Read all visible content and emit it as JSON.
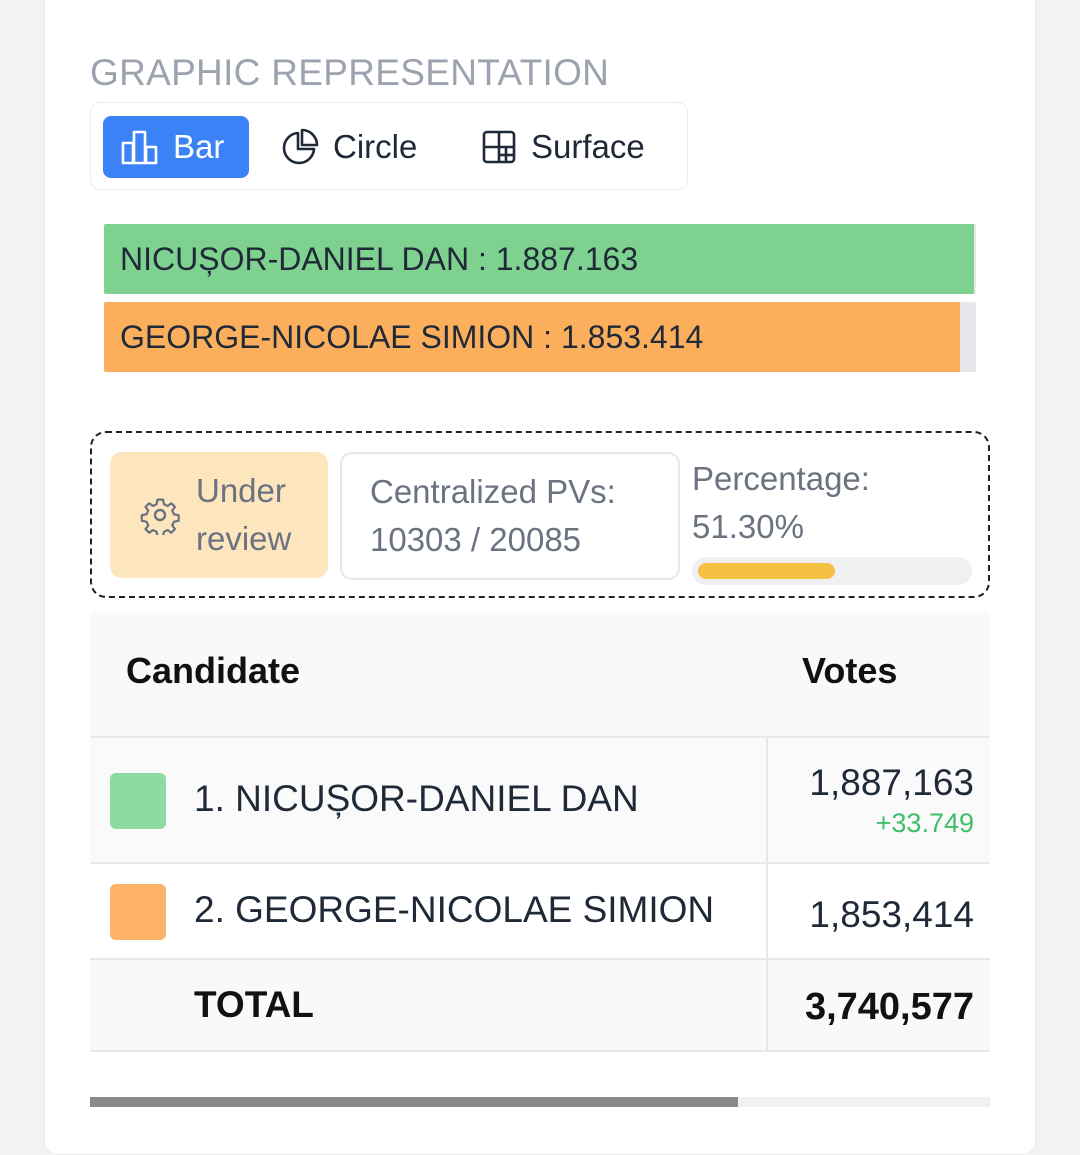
{
  "section": {
    "title": "GRAPHIC REPRESENTATION"
  },
  "tabs": [
    {
      "label": "Bar",
      "icon": "bar-chart-icon",
      "active": true
    },
    {
      "label": "Circle",
      "icon": "pie-chart-icon",
      "active": false
    },
    {
      "label": "Surface",
      "icon": "treemap-icon",
      "active": false
    }
  ],
  "bars": [
    {
      "label": "NICUȘOR-DANIEL DAN : 1.887.163",
      "value": 1887163,
      "fraction": 0.998,
      "color": "#7fd18f"
    },
    {
      "label": "GEORGE-NICOLAE SIMION : 1.853.414",
      "value": 1853414,
      "fraction": 0.982,
      "color": "#fbae5c"
    }
  ],
  "status": {
    "review_label": "Under review",
    "pv_label": "Centralized PVs:",
    "pv_value": "10303 / 20085",
    "percentage_label": "Percentage:",
    "percentage_value": "51.30%",
    "percentage_fraction": 0.513
  },
  "table": {
    "headers": {
      "candidate": "Candidate",
      "votes": "Votes"
    },
    "rows": [
      {
        "name": "1. NICUȘOR-DANIEL DAN",
        "votes": "1,887,163",
        "delta": "+33.749",
        "color": "#8fdb9f"
      },
      {
        "name": "2. GEORGE-NICOLAE SIMION",
        "votes": "1,853,414",
        "delta": "",
        "color": "#fdb266"
      }
    ],
    "total": {
      "label": "TOTAL",
      "votes": "3,740,577"
    }
  },
  "scrollbar": {
    "position_fraction": 0.72
  }
}
